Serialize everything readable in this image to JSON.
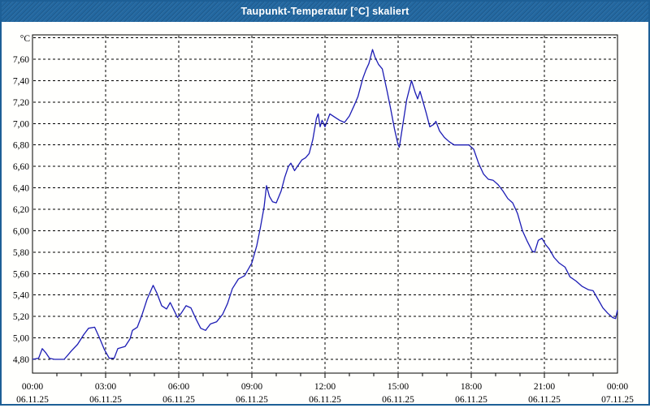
{
  "window": {
    "title": "Taupunkt-Temperatur [°C] skaliert"
  },
  "colors": {
    "titlebar_bg": "#2368a1",
    "window_border": "#1d5f96",
    "plot_bg": "#fffffd",
    "grid_color": "#000000",
    "line_color": "#1c1cb4",
    "title_text": "#ffffff",
    "axis_text": "#000000"
  },
  "chart_data": {
    "type": "line",
    "title": "Taupunkt-Temperatur [°C] skaliert",
    "grid": "dashed-on",
    "legend_position": "none",
    "y_axis": {
      "unit_label": "°C",
      "ylim": [
        4.67,
        7.82
      ],
      "grid_values": [
        4.8,
        5.0,
        5.2,
        5.4,
        5.6,
        5.8,
        6.0,
        6.2,
        6.4,
        6.6,
        6.8,
        7.0,
        7.2,
        7.4,
        7.6,
        7.8
      ],
      "tick_labels": [
        {
          "value": 7.6,
          "label": "7,60"
        },
        {
          "value": 7.4,
          "label": "7,40"
        },
        {
          "value": 7.2,
          "label": "7,20"
        },
        {
          "value": 7.0,
          "label": "7,00"
        },
        {
          "value": 6.8,
          "label": "6,80"
        },
        {
          "value": 6.6,
          "label": "6,60"
        },
        {
          "value": 6.4,
          "label": "6,40"
        },
        {
          "value": 6.2,
          "label": "6,20"
        },
        {
          "value": 6.0,
          "label": "6,00"
        },
        {
          "value": 5.8,
          "label": "5,80"
        },
        {
          "value": 5.6,
          "label": "5,60"
        },
        {
          "value": 5.4,
          "label": "5,40"
        },
        {
          "value": 5.2,
          "label": "5,20"
        },
        {
          "value": 5.0,
          "label": "5,00"
        },
        {
          "value": 4.8,
          "label": "4,80"
        }
      ]
    },
    "x_axis": {
      "range_hours": [
        0,
        24
      ],
      "minor_tick_every_hours": 1,
      "major_tick_every_hours": 3,
      "tick_labels": [
        {
          "hour": 0,
          "time": "00:00",
          "date": "06.11.25"
        },
        {
          "hour": 3,
          "time": "03:00",
          "date": "06.11.25"
        },
        {
          "hour": 6,
          "time": "06:00",
          "date": "06.11.25"
        },
        {
          "hour": 9,
          "time": "09:00",
          "date": "06.11.25"
        },
        {
          "hour": 12,
          "time": "12:00",
          "date": "06.11.25"
        },
        {
          "hour": 15,
          "time": "15:00",
          "date": "06.11.25"
        },
        {
          "hour": 18,
          "time": "18:00",
          "date": "06.11.25"
        },
        {
          "hour": 21,
          "time": "21:00",
          "date": "06.11.25"
        },
        {
          "hour": 24,
          "time": "00:00",
          "date": "07.11.25"
        }
      ]
    },
    "series": [
      {
        "name": "Taupunkt-Temperatur",
        "color": "#1c1cb4",
        "points": [
          [
            0.0,
            4.8
          ],
          [
            0.25,
            4.81
          ],
          [
            0.4,
            4.9
          ],
          [
            0.55,
            4.86
          ],
          [
            0.7,
            4.81
          ],
          [
            0.9,
            4.8
          ],
          [
            1.3,
            4.8
          ],
          [
            1.6,
            4.88
          ],
          [
            1.85,
            4.94
          ],
          [
            2.1,
            5.03
          ],
          [
            2.3,
            5.09
          ],
          [
            2.55,
            5.1
          ],
          [
            2.75,
            5.0
          ],
          [
            2.95,
            4.89
          ],
          [
            3.15,
            4.81
          ],
          [
            3.35,
            4.81
          ],
          [
            3.5,
            4.9
          ],
          [
            3.8,
            4.92
          ],
          [
            4.0,
            4.99
          ],
          [
            4.1,
            5.07
          ],
          [
            4.3,
            5.1
          ],
          [
            4.5,
            5.22
          ],
          [
            4.7,
            5.36
          ],
          [
            4.95,
            5.49
          ],
          [
            5.1,
            5.42
          ],
          [
            5.3,
            5.3
          ],
          [
            5.5,
            5.27
          ],
          [
            5.65,
            5.33
          ],
          [
            5.8,
            5.26
          ],
          [
            5.95,
            5.19
          ],
          [
            6.1,
            5.23
          ],
          [
            6.3,
            5.3
          ],
          [
            6.5,
            5.28
          ],
          [
            6.7,
            5.18
          ],
          [
            6.9,
            5.09
          ],
          [
            7.1,
            5.07
          ],
          [
            7.3,
            5.13
          ],
          [
            7.55,
            5.15
          ],
          [
            7.8,
            5.22
          ],
          [
            8.0,
            5.32
          ],
          [
            8.2,
            5.46
          ],
          [
            8.45,
            5.55
          ],
          [
            8.7,
            5.58
          ],
          [
            9.0,
            5.7
          ],
          [
            9.2,
            5.86
          ],
          [
            9.35,
            6.03
          ],
          [
            9.5,
            6.22
          ],
          [
            9.6,
            6.42
          ],
          [
            9.72,
            6.32
          ],
          [
            9.85,
            6.27
          ],
          [
            10.0,
            6.26
          ],
          [
            10.2,
            6.37
          ],
          [
            10.35,
            6.5
          ],
          [
            10.5,
            6.6
          ],
          [
            10.6,
            6.63
          ],
          [
            10.75,
            6.56
          ],
          [
            10.9,
            6.61
          ],
          [
            11.05,
            6.66
          ],
          [
            11.2,
            6.68
          ],
          [
            11.35,
            6.72
          ],
          [
            11.5,
            6.85
          ],
          [
            11.65,
            7.05
          ],
          [
            11.72,
            7.09
          ],
          [
            11.8,
            6.97
          ],
          [
            11.88,
            7.03
          ],
          [
            12.0,
            6.97
          ],
          [
            12.2,
            7.09
          ],
          [
            12.4,
            7.06
          ],
          [
            12.6,
            7.03
          ],
          [
            12.8,
            7.01
          ],
          [
            13.0,
            7.07
          ],
          [
            13.2,
            7.17
          ],
          [
            13.35,
            7.25
          ],
          [
            13.55,
            7.42
          ],
          [
            13.68,
            7.5
          ],
          [
            13.8,
            7.56
          ],
          [
            13.95,
            7.69
          ],
          [
            14.05,
            7.62
          ],
          [
            14.2,
            7.55
          ],
          [
            14.35,
            7.51
          ],
          [
            14.55,
            7.3
          ],
          [
            14.7,
            7.13
          ],
          [
            14.85,
            6.95
          ],
          [
            15.0,
            6.8
          ],
          [
            15.05,
            6.78
          ],
          [
            15.2,
            7.0
          ],
          [
            15.35,
            7.22
          ],
          [
            15.55,
            7.4
          ],
          [
            15.7,
            7.29
          ],
          [
            15.8,
            7.23
          ],
          [
            15.9,
            7.3
          ],
          [
            16.0,
            7.22
          ],
          [
            16.15,
            7.1
          ],
          [
            16.3,
            6.97
          ],
          [
            16.45,
            6.99
          ],
          [
            16.55,
            7.02
          ],
          [
            16.7,
            6.93
          ],
          [
            16.9,
            6.87
          ],
          [
            17.1,
            6.83
          ],
          [
            17.3,
            6.8
          ],
          [
            17.9,
            6.8
          ],
          [
            18.1,
            6.76
          ],
          [
            18.3,
            6.63
          ],
          [
            18.5,
            6.53
          ],
          [
            18.7,
            6.48
          ],
          [
            18.9,
            6.47
          ],
          [
            19.1,
            6.43
          ],
          [
            19.3,
            6.37
          ],
          [
            19.5,
            6.3
          ],
          [
            19.7,
            6.26
          ],
          [
            19.9,
            6.16
          ],
          [
            20.1,
            6.0
          ],
          [
            20.3,
            5.9
          ],
          [
            20.5,
            5.81
          ],
          [
            20.6,
            5.8
          ],
          [
            20.75,
            5.91
          ],
          [
            20.9,
            5.93
          ],
          [
            21.05,
            5.87
          ],
          [
            21.2,
            5.83
          ],
          [
            21.4,
            5.75
          ],
          [
            21.6,
            5.7
          ],
          [
            21.85,
            5.66
          ],
          [
            22.05,
            5.57
          ],
          [
            22.3,
            5.53
          ],
          [
            22.55,
            5.48
          ],
          [
            22.8,
            5.45
          ],
          [
            23.0,
            5.44
          ],
          [
            23.2,
            5.36
          ],
          [
            23.4,
            5.28
          ],
          [
            23.6,
            5.23
          ],
          [
            23.8,
            5.19
          ],
          [
            23.92,
            5.18
          ],
          [
            24.0,
            5.26
          ]
        ]
      }
    ]
  }
}
